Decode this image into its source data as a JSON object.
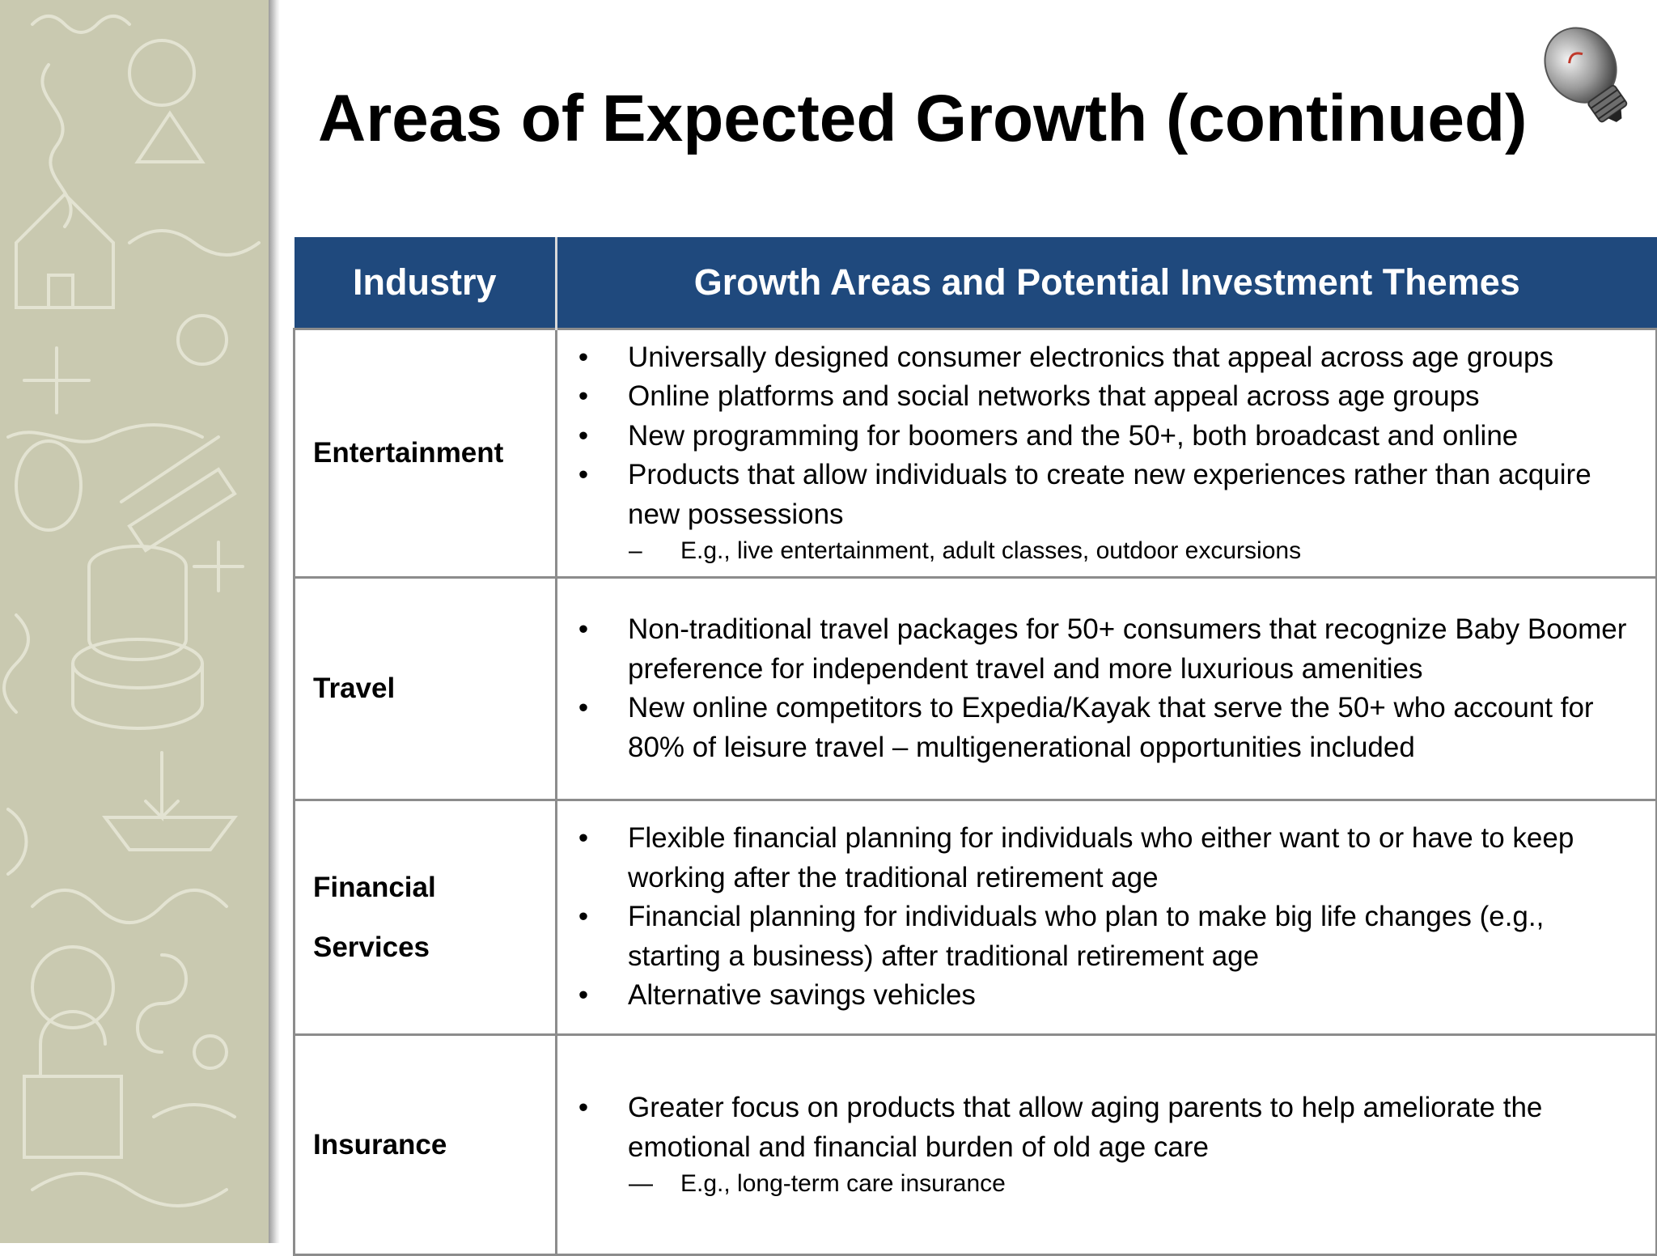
{
  "slide": {
    "title": "Areas of Expected Growth (continued)"
  },
  "table": {
    "headers": {
      "industry": "Industry",
      "themes": "Growth Areas and Potential  Investment Themes"
    },
    "rows": [
      {
        "industry": "Entertainment",
        "bullets": [
          "Universally designed consumer electronics that appeal across age groups",
          "Online platforms  and social networks that appeal across age groups",
          "New programming for boomers and the 50+, both broadcast and online",
          "Products that allow individuals to create new experiences rather than acquire new possessions"
        ],
        "sub": {
          "dash": "–",
          "text": "E.g., live entertainment, adult classes, outdoor excursions"
        }
      },
      {
        "industry": "Travel",
        "bullets": [
          "Non-traditional travel packages for 50+ consumers that recognize Baby Boomer preference for independent travel and more luxurious amenities",
          "New online competitors to Expedia/Kayak that serve the 50+ who account for 80% of leisure travel – multigenerational opportunities included"
        ]
      },
      {
        "industry": "Financial Services",
        "bullets": [
          "Flexible financial planning for individuals who either want to or have to keep working after the traditional retirement age",
          "Financial planning for individuals who plan to make big life changes (e.g., starting a business) after traditional retirement age",
          "Alternative savings vehicles"
        ]
      },
      {
        "industry": "Insurance",
        "bullets": [
          "Greater focus on products that allow aging parents to help ameliorate the emotional and financial burden of old age care"
        ],
        "sub": {
          "dash": "—",
          "text": "E.g., long-term care insurance"
        }
      }
    ],
    "bullet_glyph": "•"
  },
  "colors": {
    "header_bg": "#1f497d",
    "sidebar_bg": "#c9c9b0"
  },
  "icons": {
    "corner": "lightbulb-icon",
    "sidebar": "doodle-pattern"
  }
}
